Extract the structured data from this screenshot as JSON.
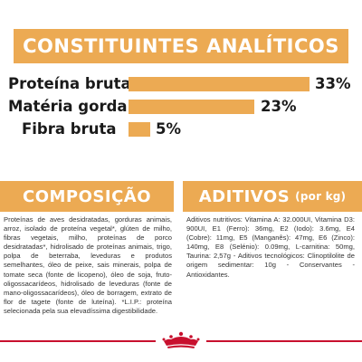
{
  "banners": {
    "analytics_title": "CONSTITUINTES ANALÍTICOS",
    "composition_title": "COMPOSIÇÃO",
    "additives_title": "ADITIVOS",
    "additives_unit": "(por kg)"
  },
  "nutrients": [
    {
      "label": "Proteína bruta",
      "value": "33%",
      "level": 33
    },
    {
      "label": "Matéria gorda bruta",
      "value": "23%",
      "level": 23
    },
    {
      "label": "Fibra bruta",
      "value": "5%",
      "level": 5
    }
  ],
  "composition_text": "Proteínas de aves desidratadas, gorduras animais, arroz, isolado de proteína vegetal*, glúten de milho, fibras vegetais, milho, proteínas de porco desidratadas*, hidrolisado de proteínas animais, trigo, polpa de beterraba, leveduras e produtos semelhantes, óleo de peixe, sais minerais, polpa de tomate seca (fonte de licopeno), óleo de soja, fruto-oligossacarídeos, hidrolisado de leveduras (fonte de mano-oligossacarídeos), óleo de borragem, extrato de flor de tagete (fonte de luteína). *L.I.P.: proteína selecionada pela sua elevadíssima digestibilidade.",
  "additives_text": "Aditivos nutritivos: Vitamina A: 32.000UI, Vitamina D3: 900UI, E1 (Ferro): 36mg, E2 (Iodo): 3.6mg, E4 (Cobre): 11mg, E5 (Manganês): 47mg, E6 (Zinco): 140mg, E8 (Selénio): 0.09mg, L-carnitina: 50mg, Taurina: 2,57g - Aditivos tecnológicos: Clinoptilolite de origem sedimentar: 10g - Conservantes - Antioxidantes.",
  "colors": {
    "accent": "#ecaa53",
    "brand_red": "#c8102e",
    "text_dark": "#1a1a1a",
    "text_body": "#333333"
  },
  "icons": {
    "footer_logo": "crown-icon"
  }
}
